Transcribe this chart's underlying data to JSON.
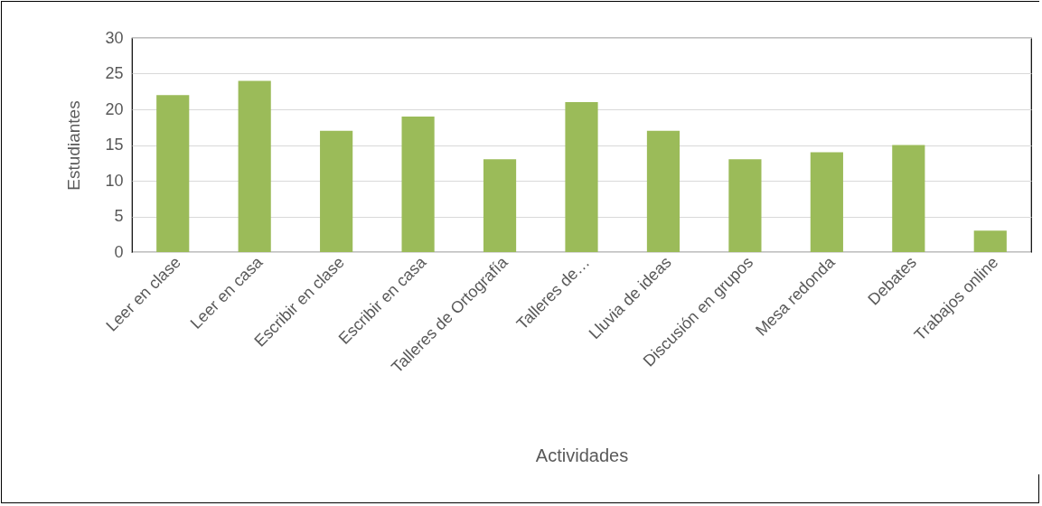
{
  "chart_data": {
    "type": "bar",
    "xlabel": "Actividades",
    "ylabel": "Estudiantes",
    "categories": [
      "Leer en clase",
      "Leer en casa",
      "Escribir en clase",
      "Escribir en casa",
      "Talleres de Ortografía",
      "Talleres de…",
      "Lluvia de ideas",
      "Discusión en grupos",
      "Mesa redonda",
      "Debates",
      "Trabajos online"
    ],
    "values": [
      22,
      24,
      17,
      19,
      13,
      21,
      17,
      13,
      14,
      15,
      3
    ],
    "color": "#9bbb59",
    "ylim": [
      0,
      30
    ],
    "yticks": [
      0,
      5,
      10,
      15,
      20,
      25,
      30
    ],
    "grid": "y"
  }
}
